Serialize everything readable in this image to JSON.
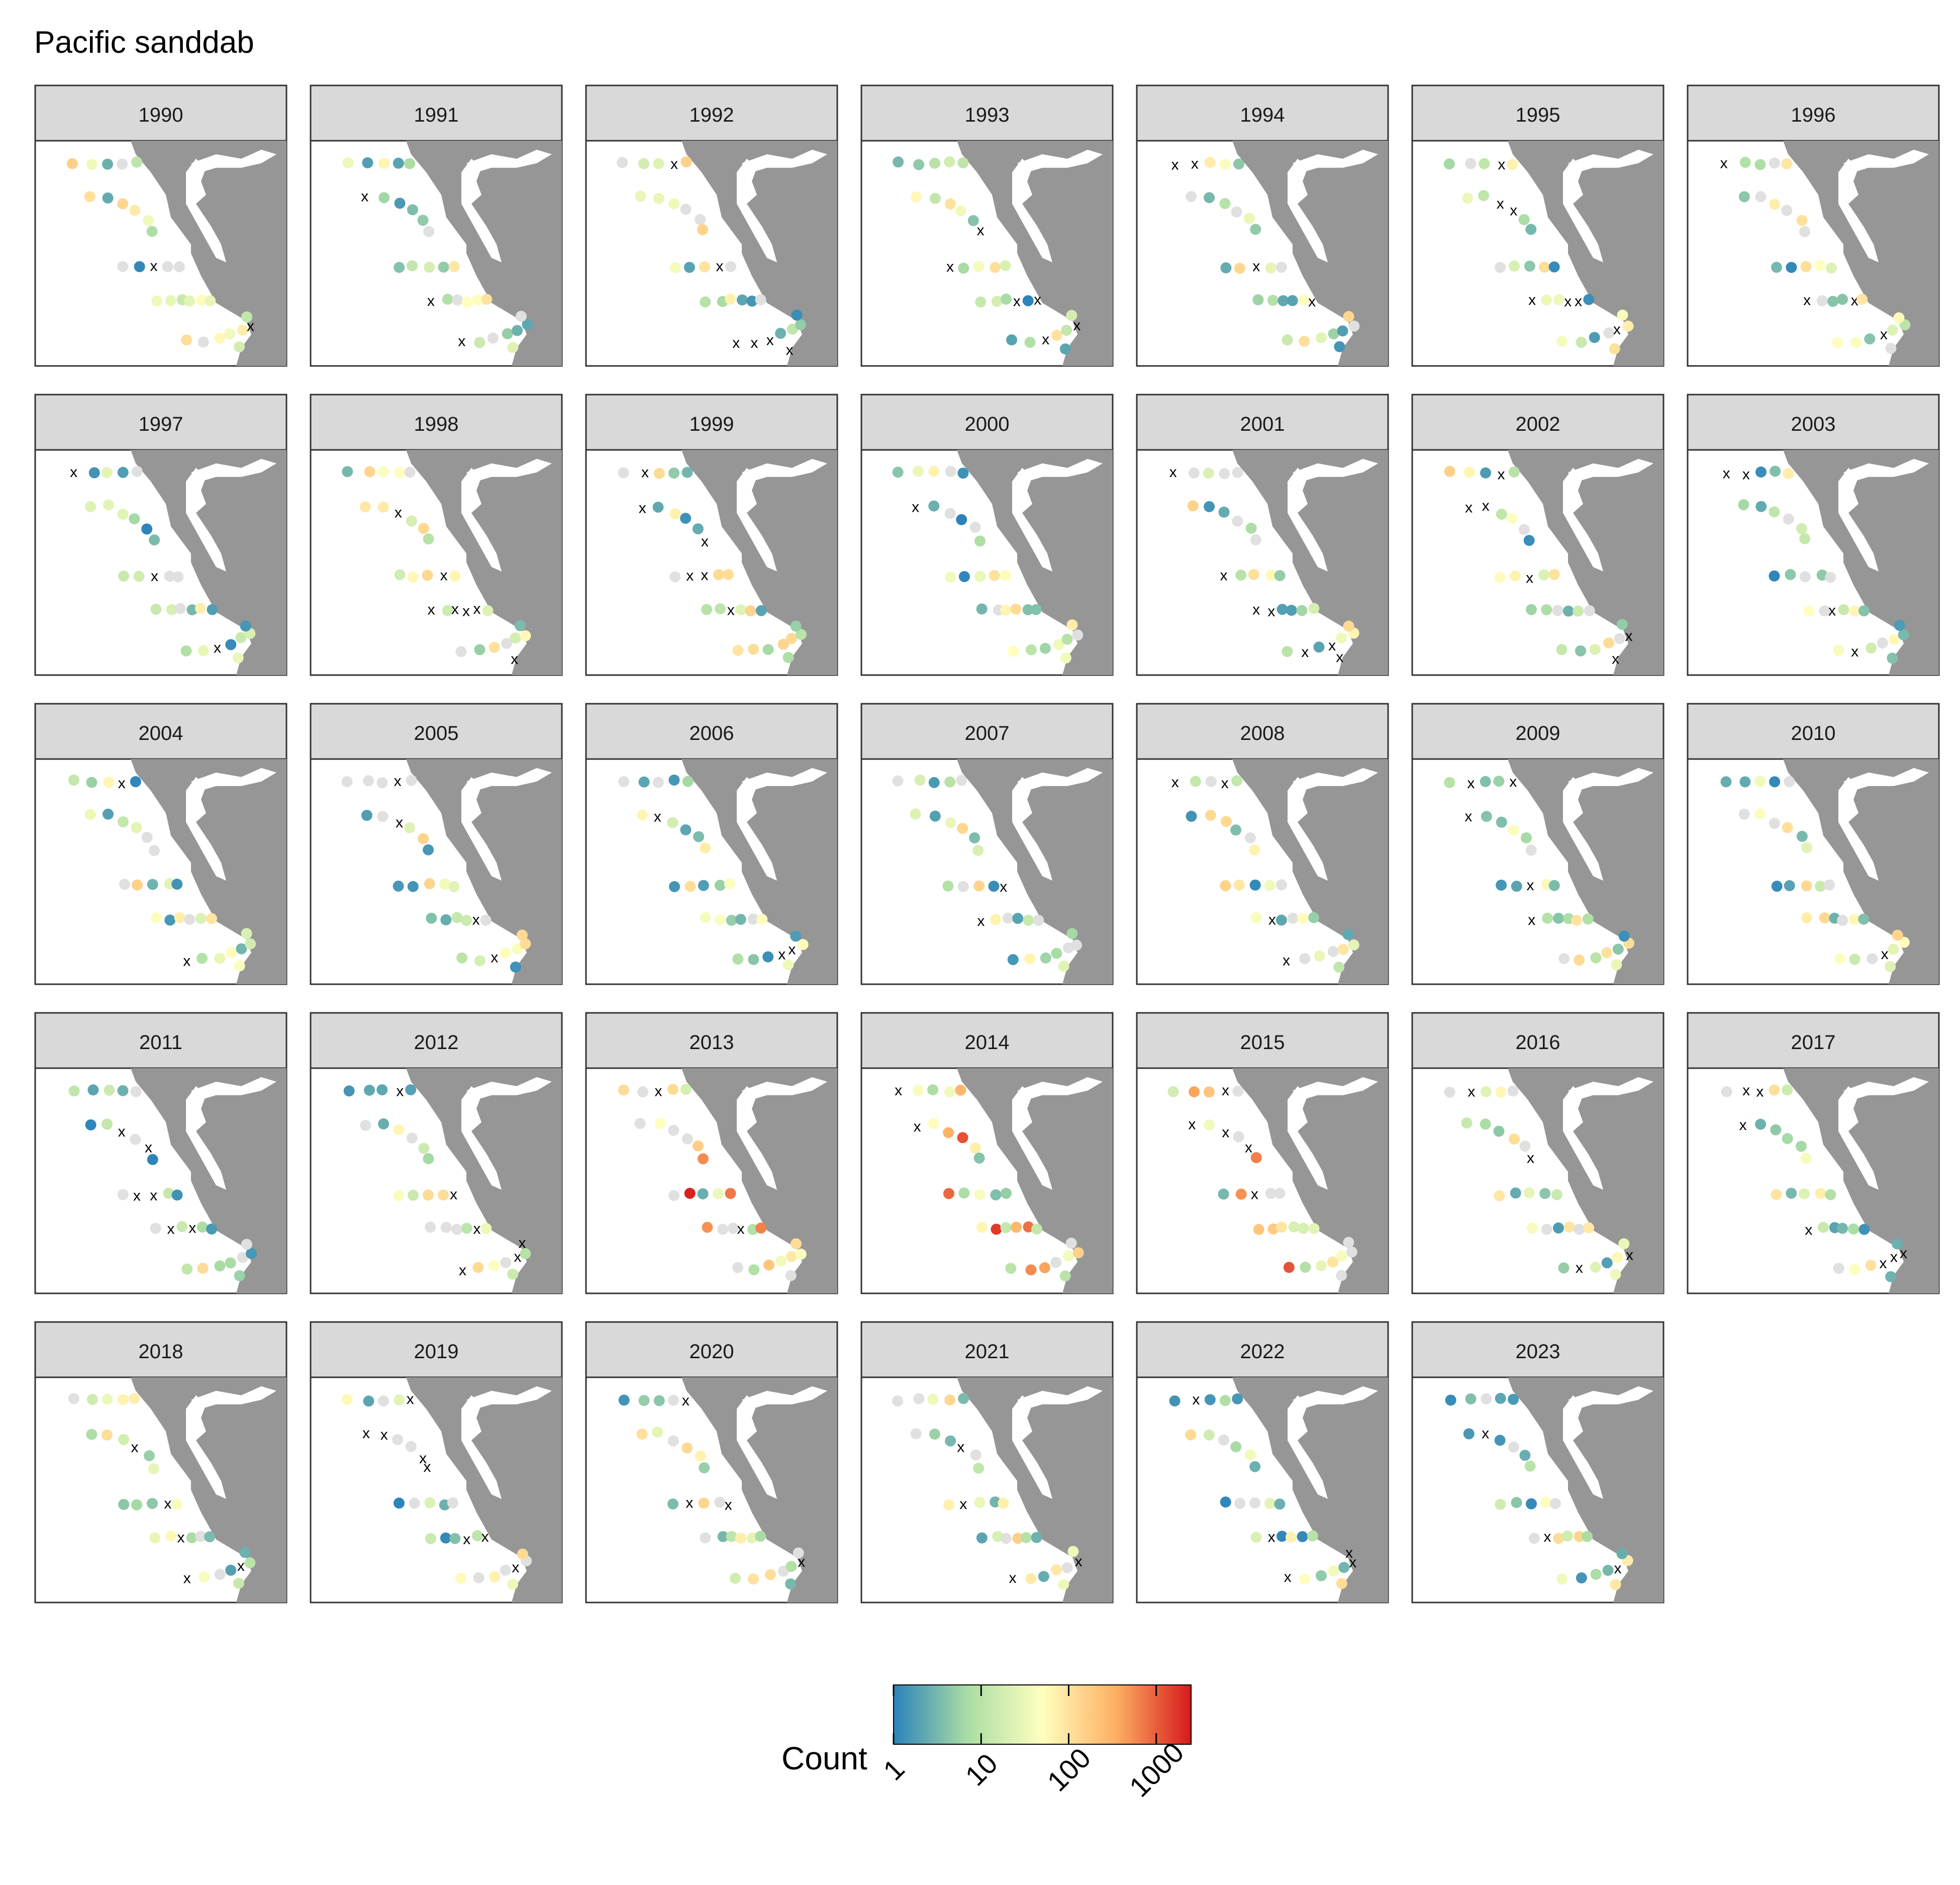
{
  "chart_data": {
    "type": "scatter",
    "title": "Pacific sanddab",
    "facets": [
      "1990",
      "1991",
      "1992",
      "1993",
      "1994",
      "1995",
      "1996",
      "1997",
      "1998",
      "1999",
      "2000",
      "2001",
      "2002",
      "2003",
      "2004",
      "2005",
      "2006",
      "2007",
      "2008",
      "2009",
      "2010",
      "2011",
      "2012",
      "2013",
      "2014",
      "2015",
      "2016",
      "2017",
      "2018",
      "2019",
      "2020",
      "2021",
      "2022",
      "2023"
    ],
    "legend": {
      "title": "Count",
      "scale": "log",
      "ticks": [
        1,
        10,
        100,
        1000
      ],
      "tick_labels": [
        "1",
        "10",
        "100",
        "1000"
      ],
      "range": [
        1,
        2500
      ],
      "palette": [
        "#2b83ba",
        "#abdda4",
        "#ffffbf",
        "#fdae61",
        "#d7191c"
      ],
      "zero_marker": "x",
      "no_data_color": "#e0e0e0",
      "placement": "bottom"
    },
    "station_lines": 5,
    "land_color": "#969696"
  }
}
